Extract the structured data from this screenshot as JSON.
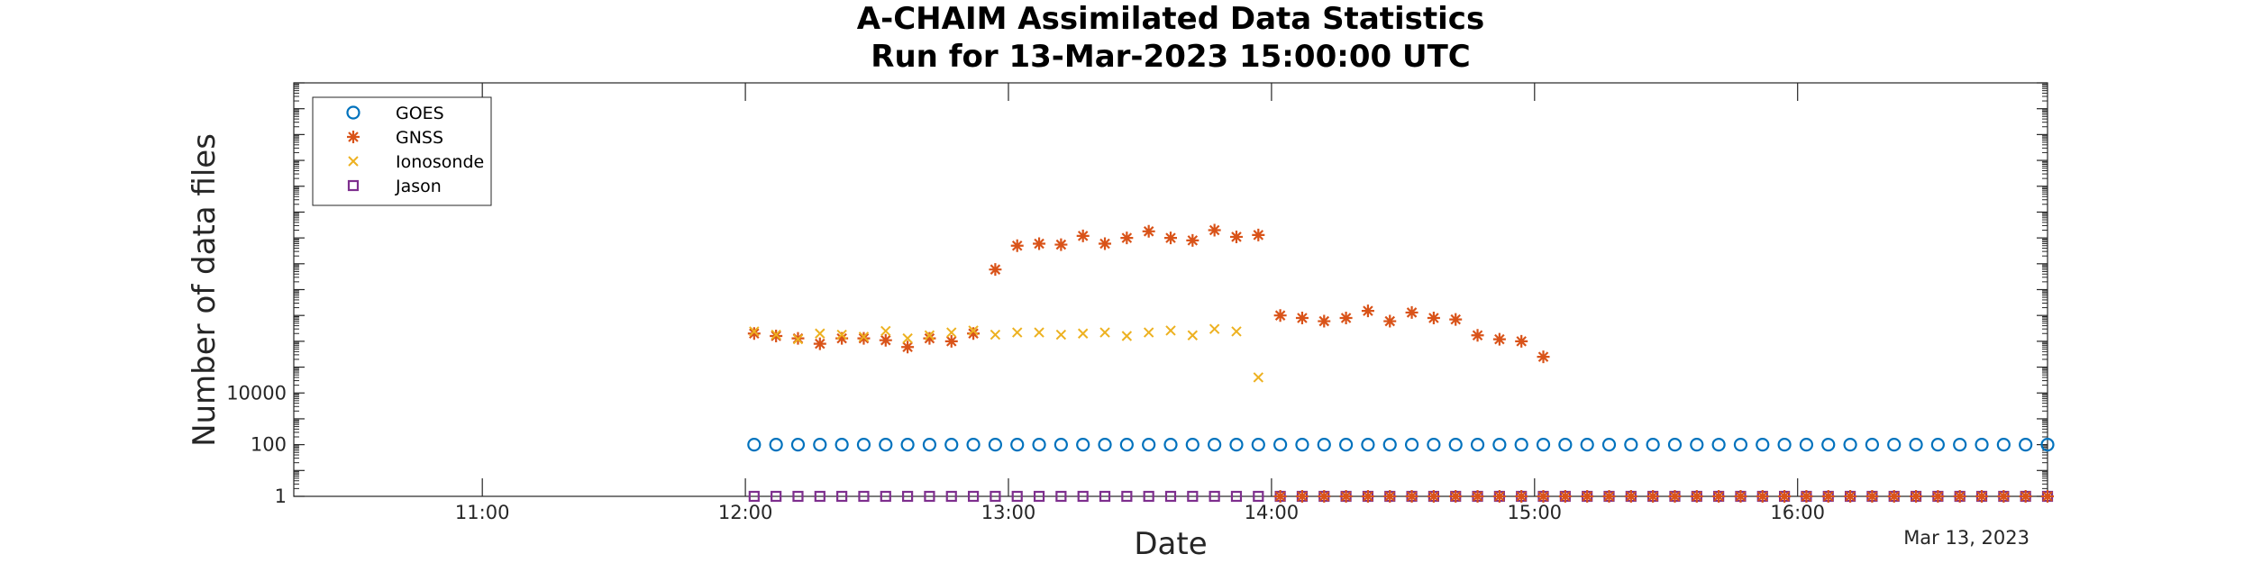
{
  "chart_data": {
    "type": "scatter",
    "title": [
      "A-CHAIM Assimilated Data Statistics",
      "Run for 13-Mar-2023 15:00:00 UTC"
    ],
    "xlabel": "Date",
    "ylabel": "Number of data files",
    "x_axis_type": "time",
    "xlim": [
      "10:17",
      "16:57"
    ],
    "x_ticks": [
      "11:00",
      "12:00",
      "13:00",
      "14:00",
      "15:00",
      "16:00"
    ],
    "x_date_note": "Mar 13, 2023",
    "y_scale": "log",
    "ylim": [
      1,
      10000000000000000
    ],
    "y_ticks": [
      {
        "value": 1,
        "label": "1"
      },
      {
        "value": 100,
        "label": "100"
      },
      {
        "value": 10000,
        "label": "10000"
      }
    ],
    "grid": false,
    "legend": "top-left",
    "series": [
      {
        "name": "GOES",
        "marker": "circle",
        "color": "#0072BD",
        "x": [
          "12:02",
          "12:07",
          "12:12",
          "12:17",
          "12:22",
          "12:27",
          "12:32",
          "12:37",
          "12:42",
          "12:47",
          "12:52",
          "12:57",
          "13:02",
          "13:07",
          "13:12",
          "13:17",
          "13:22",
          "13:27",
          "13:32",
          "13:37",
          "13:42",
          "13:47",
          "13:52",
          "13:57",
          "14:02",
          "14:07",
          "14:12",
          "14:17",
          "14:22",
          "14:27",
          "14:32",
          "14:37",
          "14:42",
          "14:47",
          "14:52",
          "14:57",
          "15:02",
          "15:07",
          "15:12",
          "15:17",
          "15:22",
          "15:27",
          "15:32",
          "15:37",
          "15:42",
          "15:47",
          "15:52",
          "15:57",
          "16:02",
          "16:07",
          "16:12",
          "16:17",
          "16:22",
          "16:27",
          "16:32",
          "16:37",
          "16:42",
          "16:47",
          "16:52",
          "16:57"
        ],
        "y": [
          100,
          100,
          100,
          100,
          100,
          100,
          100,
          100,
          100,
          100,
          100,
          100,
          100,
          100,
          100,
          100,
          100,
          100,
          100,
          100,
          100,
          100,
          100,
          100,
          100,
          100,
          100,
          100,
          100,
          100,
          100,
          100,
          100,
          100,
          100,
          100,
          100,
          100,
          100,
          100,
          100,
          100,
          100,
          100,
          100,
          100,
          100,
          100,
          100,
          100,
          100,
          100,
          100,
          100,
          100,
          100,
          100,
          100,
          100,
          100
        ]
      },
      {
        "name": "GNSS",
        "marker": "star",
        "color": "#D95319",
        "x": [
          "12:02",
          "12:07",
          "12:12",
          "12:17",
          "12:22",
          "12:27",
          "12:32",
          "12:37",
          "12:42",
          "12:47",
          "12:52",
          "12:57",
          "13:02",
          "13:07",
          "13:12",
          "13:17",
          "13:22",
          "13:27",
          "13:32",
          "13:37",
          "13:42",
          "13:47",
          "13:52",
          "13:57",
          "14:02",
          "14:07",
          "14:12",
          "14:17",
          "14:22",
          "14:27",
          "14:32",
          "14:37",
          "14:42",
          "14:47",
          "14:52",
          "14:57",
          "15:02"
        ],
        "y": [
          2000000,
          1600000,
          1300000,
          800000,
          1300000,
          1300000,
          1100000,
          600000,
          1300000,
          1000000,
          2000000,
          600000000,
          5000000000,
          6000000000,
          5500000000,
          12000000000,
          6000000000,
          10000000000,
          18000000000,
          10000000000,
          8000000000,
          20000000000,
          11000000000,
          13000000000,
          10000000,
          8000000,
          6000000,
          8000000,
          15000000,
          6000000,
          13000000,
          8000000,
          7000000,
          1700000,
          1200000,
          1000000,
          250000
        ]
      },
      {
        "name": "Ionosonde",
        "marker": "x",
        "color": "#EDB120",
        "x": [
          "12:02",
          "12:07",
          "12:12",
          "12:17",
          "12:22",
          "12:27",
          "12:32",
          "12:37",
          "12:42",
          "12:47",
          "12:52",
          "12:57",
          "13:02",
          "13:07",
          "13:12",
          "13:17",
          "13:22",
          "13:27",
          "13:32",
          "13:37",
          "13:42",
          "13:47",
          "13:52",
          "13:57"
        ],
        "y": [
          2400000,
          1800000,
          1200000,
          2000000,
          1800000,
          1500000,
          2500000,
          1300000,
          1700000,
          2200000,
          2600000,
          1800000,
          2200000,
          2200000,
          1800000,
          2000000,
          2200000,
          1600000,
          2200000,
          2600000,
          1700000,
          3000000,
          2400000,
          40000
        ]
      },
      {
        "name": "Jason",
        "marker": "square",
        "color": "#7E2F8E",
        "x": [
          "12:02",
          "12:07",
          "12:12",
          "12:17",
          "12:22",
          "12:27",
          "12:32",
          "12:37",
          "12:42",
          "12:47",
          "12:52",
          "12:57",
          "13:02",
          "13:07",
          "13:12",
          "13:17",
          "13:22",
          "13:27",
          "13:32",
          "13:37",
          "13:42",
          "13:47",
          "13:52",
          "13:57",
          "14:02",
          "14:07",
          "14:12",
          "14:17",
          "14:22",
          "14:27",
          "14:32",
          "14:37",
          "14:42",
          "14:47",
          "14:52",
          "14:57",
          "15:02",
          "15:07",
          "15:12",
          "15:17",
          "15:22",
          "15:27",
          "15:32",
          "15:37",
          "15:42",
          "15:47",
          "15:52",
          "15:57",
          "16:02",
          "16:07",
          "16:12",
          "16:17",
          "16:22",
          "16:27",
          "16:32",
          "16:37",
          "16:42",
          "16:47",
          "16:52",
          "16:57"
        ],
        "y": [
          1,
          1,
          1,
          1,
          1,
          1,
          1,
          1,
          1,
          1,
          1,
          1,
          1,
          1,
          1,
          1,
          1,
          1,
          1,
          1,
          1,
          1,
          1,
          1,
          1,
          1,
          1,
          1,
          1,
          1,
          1,
          1,
          1,
          1,
          1,
          1,
          1,
          1,
          1,
          1,
          1,
          1,
          1,
          1,
          1,
          1,
          1,
          1,
          1,
          1,
          1,
          1,
          1,
          1,
          1,
          1,
          1,
          1,
          1,
          1
        ]
      },
      {
        "name": "",
        "marker": "star",
        "color": "#D95319",
        "x": [
          "14:02",
          "14:07",
          "14:12",
          "14:17",
          "14:22",
          "14:27",
          "14:32",
          "14:37",
          "14:42",
          "14:47",
          "14:52",
          "14:57",
          "15:02",
          "15:07",
          "15:12",
          "15:17",
          "15:22",
          "15:27",
          "15:32",
          "15:37",
          "15:42",
          "15:47",
          "15:52",
          "15:57",
          "16:02",
          "16:07",
          "16:12",
          "16:17",
          "16:22",
          "16:27",
          "16:32",
          "16:37",
          "16:42",
          "16:47",
          "16:52",
          "16:57"
        ],
        "y": [
          1,
          1,
          1,
          1,
          1,
          1,
          1,
          1,
          1,
          1,
          1,
          1,
          1,
          1,
          1,
          1,
          1,
          1,
          1,
          1,
          1,
          1,
          1,
          1,
          1,
          1,
          1,
          1,
          1,
          1,
          1,
          1,
          1,
          1,
          1,
          1
        ]
      }
    ]
  }
}
